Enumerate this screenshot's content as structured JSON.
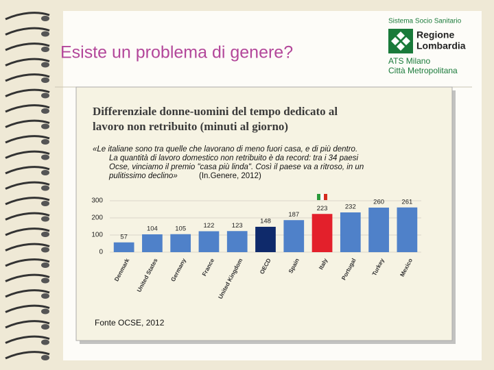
{
  "slide": {
    "title": "Esiste un problema di genere?"
  },
  "logo": {
    "lines": [
      "Sistema Socio Sanitario",
      "Regione",
      "Lombardia",
      "ATS Milano",
      "Città Metropolitana"
    ]
  },
  "quote": {
    "lines": [
      "«Le italiane sono tra quelle che lavorano di meno fuori casa, e di più dentro.",
      "La quantità di lavoro domestico non retribuito è da record: tra i 34 paesi",
      "Ocse, vinciamo il premio \"casa più linda\". Così il paese va a ritroso, in un",
      "pulitissimo declino»"
    ],
    "citation": "(In.Genere, 2012)"
  },
  "source": "Fonte OCSE, 2012",
  "chart_data": {
    "type": "bar",
    "title": [
      "Differenziale donne-uomini del tempo dedicato al",
      "lavoro non retribuito (minuti al giorno)"
    ],
    "categories": [
      "Denmark",
      "United States",
      "Germany",
      "France",
      "United Kingdom",
      "OECD",
      "Spain",
      "Italy",
      "Portugal",
      "Turkey",
      "Mexico"
    ],
    "values": [
      57,
      104,
      105,
      122,
      123,
      148,
      187,
      223,
      232,
      260,
      261
    ],
    "colors": [
      "#4f81c9",
      "#4f81c9",
      "#4f81c9",
      "#4f81c9",
      "#4f81c9",
      "#0f2a6b",
      "#4f81c9",
      "#e3202b",
      "#4f81c9",
      "#4f81c9",
      "#4f81c9"
    ],
    "ylim": [
      0,
      300
    ],
    "yticks": [
      0,
      100,
      200,
      300
    ],
    "grid": true
  }
}
